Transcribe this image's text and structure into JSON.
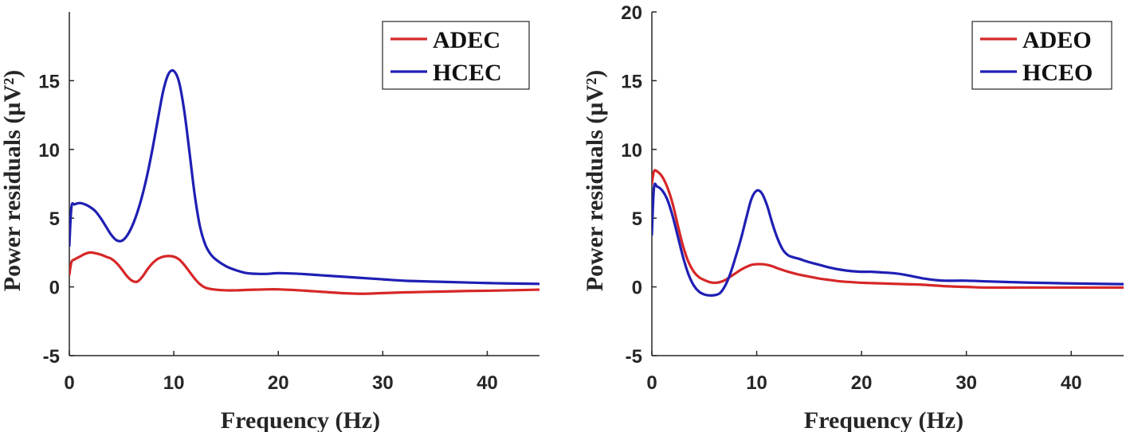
{
  "chart_data": [
    {
      "type": "line",
      "title": "",
      "xlabel": "Frequency (Hz)",
      "ylabel": "Power residuals (µV²)",
      "xlim": [
        0,
        45
      ],
      "ylim": [
        -5,
        20
      ],
      "xticks": [
        0,
        10,
        20,
        30,
        40
      ],
      "yticks": [
        -5,
        0,
        5,
        10,
        15
      ],
      "legend_position": "top-right",
      "series": [
        {
          "name": "ADEC",
          "color": "#d62728",
          "x": [
            0,
            0.2,
            0.5,
            1,
            1.5,
            2,
            2.5,
            3,
            3.5,
            4,
            4.5,
            5,
            5.5,
            6,
            6.5,
            7,
            7.5,
            8,
            8.5,
            9,
            9.5,
            10,
            10.5,
            11,
            11.5,
            12,
            12.5,
            13,
            13.5,
            14,
            15,
            16,
            17,
            18,
            19,
            20,
            22,
            24,
            26,
            28,
            30,
            32,
            35,
            38,
            40,
            42,
            45
          ],
          "y": [
            0.9,
            1.8,
            2.0,
            2.2,
            2.4,
            2.5,
            2.45,
            2.35,
            2.2,
            2.05,
            1.75,
            1.3,
            0.8,
            0.45,
            0.38,
            0.75,
            1.3,
            1.75,
            2.05,
            2.2,
            2.25,
            2.2,
            2.0,
            1.6,
            1.1,
            0.6,
            0.2,
            -0.05,
            -0.15,
            -0.2,
            -0.25,
            -0.25,
            -0.22,
            -0.2,
            -0.18,
            -0.18,
            -0.25,
            -0.35,
            -0.45,
            -0.5,
            -0.45,
            -0.4,
            -0.35,
            -0.3,
            -0.28,
            -0.25,
            -0.2
          ]
        },
        {
          "name": "HCEC",
          "color": "#1f1fb4",
          "x": [
            0,
            0.2,
            0.5,
            1,
            1.5,
            2,
            2.5,
            3,
            3.5,
            4,
            4.5,
            5,
            5.5,
            6,
            6.5,
            7,
            7.5,
            8,
            8.5,
            9,
            9.5,
            10,
            10.5,
            11,
            11.5,
            12,
            12.5,
            13,
            13.5,
            14,
            15,
            16,
            17,
            18,
            19,
            20,
            22,
            24,
            26,
            28,
            30,
            32,
            35,
            38,
            40,
            42,
            45
          ],
          "y": [
            3.0,
            5.8,
            6.0,
            6.1,
            6.0,
            5.8,
            5.5,
            5.0,
            4.4,
            3.8,
            3.4,
            3.35,
            3.7,
            4.4,
            5.4,
            6.7,
            8.3,
            10.2,
            12.3,
            14.3,
            15.5,
            15.7,
            14.9,
            12.8,
            9.8,
            6.7,
            4.4,
            3.1,
            2.4,
            2.0,
            1.5,
            1.2,
            1.0,
            0.95,
            0.95,
            1.0,
            0.95,
            0.85,
            0.75,
            0.65,
            0.55,
            0.45,
            0.38,
            0.32,
            0.28,
            0.25,
            0.22
          ]
        }
      ]
    },
    {
      "type": "line",
      "title": "",
      "xlabel": "Frequency (Hz)",
      "ylabel": "Power residuals (µV²)",
      "xlim": [
        0,
        45
      ],
      "ylim": [
        -5,
        20
      ],
      "xticks": [
        0,
        10,
        20,
        30,
        40
      ],
      "yticks": [
        -5,
        0,
        5,
        10,
        15,
        20
      ],
      "legend_position": "top-right",
      "series": [
        {
          "name": "ADEO",
          "color": "#d62728",
          "x": [
            0,
            0.2,
            0.5,
            1,
            1.5,
            2,
            2.5,
            3,
            3.5,
            4,
            4.5,
            5,
            5.5,
            6,
            6.5,
            7,
            7.5,
            8,
            8.5,
            9,
            9.5,
            10,
            10.5,
            11,
            11.5,
            12,
            13,
            14,
            15,
            16,
            17,
            18,
            19,
            20,
            22,
            24,
            26,
            28,
            30,
            32,
            35,
            38,
            40,
            42,
            45
          ],
          "y": [
            7.5,
            8.4,
            8.4,
            8.0,
            7.2,
            6.0,
            4.4,
            2.9,
            1.8,
            1.1,
            0.7,
            0.5,
            0.35,
            0.3,
            0.35,
            0.5,
            0.75,
            1.0,
            1.25,
            1.45,
            1.6,
            1.65,
            1.65,
            1.6,
            1.5,
            1.35,
            1.1,
            0.9,
            0.75,
            0.6,
            0.5,
            0.4,
            0.35,
            0.3,
            0.25,
            0.2,
            0.15,
            0.05,
            0.0,
            -0.05,
            -0.05,
            -0.05,
            -0.05,
            -0.05,
            -0.05
          ]
        },
        {
          "name": "HCEO",
          "color": "#1f1fb4",
          "x": [
            0,
            0.2,
            0.5,
            1,
            1.5,
            2,
            2.5,
            3,
            3.5,
            4,
            4.5,
            5,
            5.5,
            6,
            6.5,
            7,
            7.5,
            8,
            8.5,
            9,
            9.5,
            10,
            10.5,
            11,
            11.5,
            12,
            12.5,
            13,
            13.5,
            14,
            15,
            16,
            17,
            18,
            19,
            20,
            21,
            22,
            23,
            24,
            26,
            27,
            28,
            30,
            32,
            35,
            38,
            40,
            42,
            45
          ],
          "y": [
            3.8,
            7.2,
            7.3,
            7.0,
            6.3,
            5.1,
            3.6,
            2.1,
            0.9,
            0.1,
            -0.35,
            -0.55,
            -0.62,
            -0.6,
            -0.45,
            0.1,
            1.0,
            2.2,
            3.5,
            5.0,
            6.4,
            7.0,
            6.8,
            5.9,
            4.6,
            3.5,
            2.7,
            2.3,
            2.15,
            2.05,
            1.8,
            1.6,
            1.4,
            1.25,
            1.15,
            1.1,
            1.1,
            1.05,
            1.0,
            0.9,
            0.6,
            0.5,
            0.45,
            0.45,
            0.4,
            0.33,
            0.28,
            0.25,
            0.23,
            0.2
          ]
        }
      ]
    }
  ]
}
